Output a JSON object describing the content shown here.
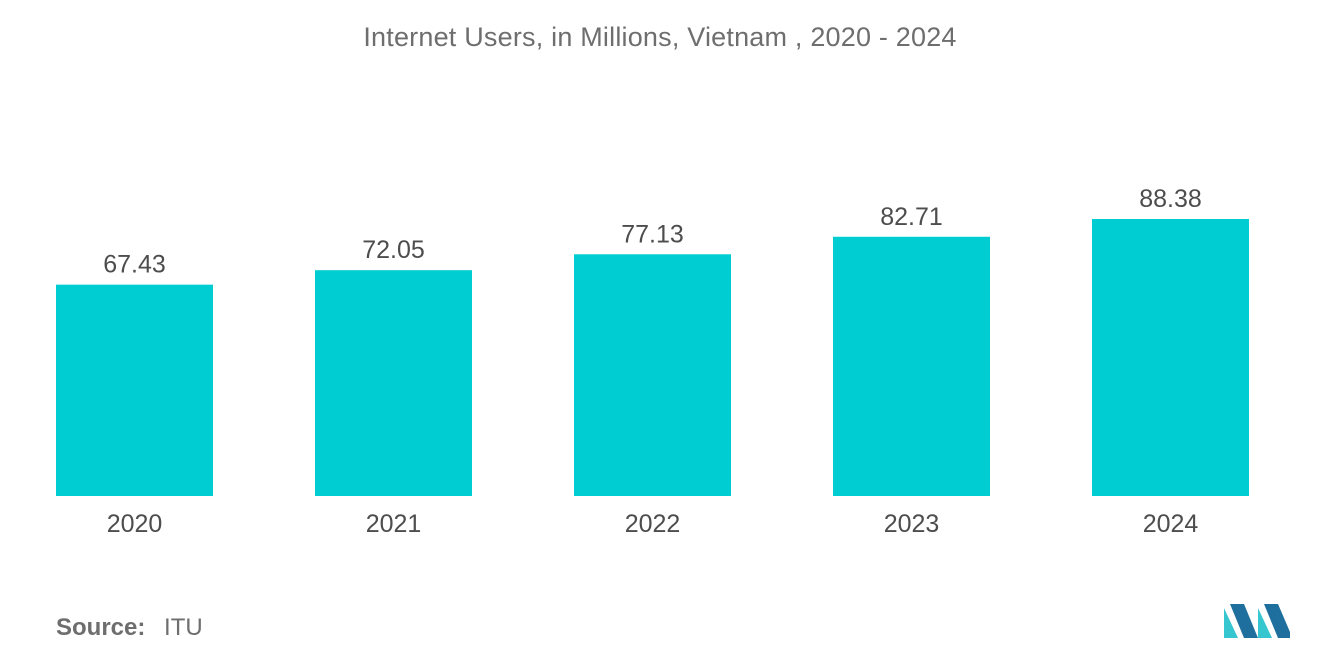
{
  "colors": {
    "bar": "#00cdd1",
    "text": "#4d4d4d",
    "title": "#6e6e6e",
    "logo_dark": "#1f6f9e",
    "logo_light": "#36c6d0"
  },
  "chart_data": {
    "type": "bar",
    "title": "Internet Users, in Millions, Vietnam , 2020 - 2024",
    "xlabel": "",
    "ylabel": "",
    "categories": [
      "2020",
      "2021",
      "2022",
      "2023",
      "2024"
    ],
    "values": [
      67.43,
      72.05,
      77.13,
      82.71,
      88.38
    ],
    "value_labels": [
      "67.43",
      "72.05",
      "77.13",
      "82.71",
      "88.38"
    ],
    "ylim": [
      0,
      100
    ],
    "grid": false,
    "legend": "none"
  },
  "footer": {
    "source_label": "Source:",
    "source_value": "ITU"
  },
  "logo": {
    "icon": "mordor-intelligence-logo-icon"
  }
}
